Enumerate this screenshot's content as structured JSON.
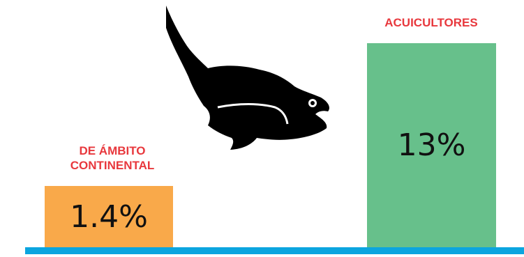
{
  "chart_data": {
    "type": "bar",
    "categories": [
      "DE ÁMBITO CONTINENTAL",
      "ACUICULTORES"
    ],
    "values": [
      1.4,
      13
    ],
    "value_labels": [
      "1.4%",
      "13%"
    ],
    "colors": [
      "#F9A94A",
      "#67C08B"
    ],
    "label_color": "#E8383D",
    "baseline_color": "#0BA5DF",
    "icon": "fish-icon",
    "title": "",
    "xlabel": "",
    "ylabel": ""
  }
}
